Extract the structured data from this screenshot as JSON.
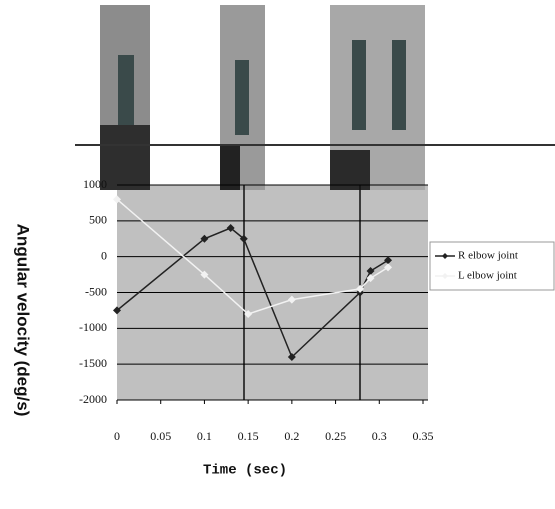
{
  "chart_data": {
    "type": "line",
    "x_label": "Time (sec)",
    "y_label": "Angular velocity (deg/s)",
    "xlim": [
      0,
      0.35
    ],
    "xticks": [
      0,
      0.05,
      0.1,
      0.15,
      0.2,
      0.25,
      0.3,
      0.35
    ],
    "ylim": [
      -2000,
      1000
    ],
    "yticks": [
      -2000,
      -1500,
      -1000,
      -500,
      0,
      500,
      1000
    ],
    "grid": true,
    "series": [
      {
        "name": "R elbow joint",
        "color": "#222222",
        "x": [
          0,
          0.1,
          0.13,
          0.145,
          0.2,
          0.278,
          0.29,
          0.31
        ],
        "values": [
          -750,
          250,
          400,
          250,
          -1400,
          -500,
          -200,
          -50
        ]
      },
      {
        "name": "L elbow joint",
        "color": "#f2f2f2",
        "x": [
          0,
          0.1,
          0.15,
          0.2,
          0.278,
          0.29,
          0.31
        ],
        "values": [
          800,
          -250,
          -800,
          -600,
          -450,
          -300,
          -150
        ]
      }
    ]
  }
}
